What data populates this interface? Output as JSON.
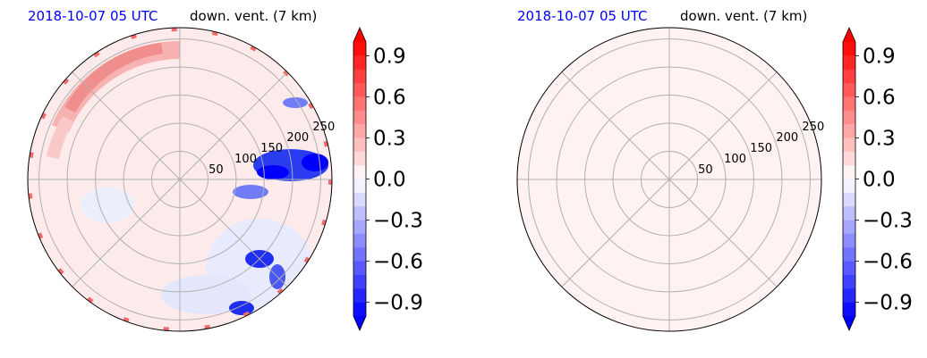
{
  "chart_data": [
    {
      "type": "heatmap",
      "projection": "polar",
      "date_label": "2018-10-07 05 UTC",
      "title": "down. vent. (7 km)",
      "r_max": 270,
      "r_ticks": [
        50,
        100,
        150,
        200,
        250
      ],
      "theta_grid_deg": [
        0,
        45,
        90,
        135,
        180,
        225,
        270,
        315
      ],
      "field": "mixed positive and negative values; strong negative (blue) clusters to the east and south-east, a positive (red) band in the north-west, values elsewhere near zero",
      "colorbar": {
        "min": -1.0,
        "max": 1.0,
        "levels": 20,
        "ticks": [
          "0.9",
          "0.6",
          "0.3",
          "0.0",
          "−0.3",
          "−0.6",
          "−0.9"
        ],
        "tick_values": [
          0.9,
          0.6,
          0.3,
          0.0,
          -0.3,
          -0.6,
          -0.9
        ],
        "cmap": "bwr",
        "extend": "both"
      },
      "colors": {
        "neg": "#0000ff",
        "pos": "#ff0000",
        "zero": "#ffffff"
      }
    },
    {
      "type": "heatmap",
      "projection": "polar",
      "date_label": "2018-10-07 05 UTC",
      "title": "down. vent. (7 km)",
      "r_max": 270,
      "r_ticks": [
        50,
        100,
        150,
        200,
        250
      ],
      "theta_grid_deg": [
        0,
        45,
        90,
        135,
        180,
        225,
        270,
        315
      ],
      "field": "uniform small positive value everywhere",
      "uniform_value": 0.05,
      "colorbar": {
        "min": -1.0,
        "max": 1.0,
        "levels": 20,
        "ticks": [
          "0.9",
          "0.6",
          "0.3",
          "0.0",
          "−0.3",
          "−0.6",
          "−0.9"
        ],
        "tick_values": [
          0.9,
          0.6,
          0.3,
          0.0,
          -0.3,
          -0.6,
          -0.9
        ],
        "cmap": "bwr",
        "extend": "both"
      },
      "colors": {
        "neg": "#0000ff",
        "pos": "#ff0000",
        "zero": "#ffffff"
      }
    }
  ]
}
